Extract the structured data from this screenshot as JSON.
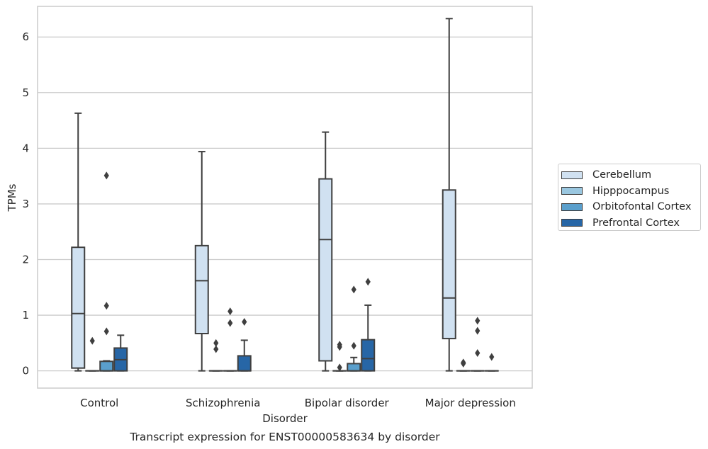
{
  "chart_data": {
    "type": "boxplot",
    "title": "",
    "caption": "Transcript expression for ENST00000583634 by disorder",
    "xlabel": "Disorder",
    "ylabel": "TPMs",
    "ylim": [
      -0.31,
      6.55
    ],
    "yticks": [
      0,
      1,
      2,
      3,
      4,
      5,
      6
    ],
    "grid": "horizontal",
    "legend_position": "right",
    "categories": [
      "Control",
      "Schizophrenia",
      "Bipolar disorder",
      "Major depression"
    ],
    "series": [
      {
        "name": "Cerebellum",
        "color": "#d0e1f1",
        "boxes": [
          {
            "q1": 0.05,
            "median": 1.03,
            "q3": 2.22,
            "whisker_low": 0.0,
            "whisker_high": 4.63,
            "outliers": []
          },
          {
            "q1": 0.67,
            "median": 1.62,
            "q3": 2.25,
            "whisker_low": 0.0,
            "whisker_high": 3.94,
            "outliers": []
          },
          {
            "q1": 0.18,
            "median": 2.36,
            "q3": 3.45,
            "whisker_low": 0.0,
            "whisker_high": 4.29,
            "outliers": []
          },
          {
            "q1": 0.58,
            "median": 1.31,
            "q3": 3.25,
            "whisker_low": 0.0,
            "whisker_high": 6.33,
            "outliers": []
          }
        ]
      },
      {
        "name": "Hipppocampus",
        "color": "#9ac7e0",
        "boxes": [
          {
            "q1": 0.0,
            "median": 0.0,
            "q3": 0.0,
            "whisker_low": 0.0,
            "whisker_high": 0.0,
            "outliers": [
              0.54
            ]
          },
          {
            "q1": 0.0,
            "median": 0.0,
            "q3": 0.0,
            "whisker_low": 0.0,
            "whisker_high": 0.0,
            "outliers": [
              0.5,
              0.39
            ]
          },
          {
            "q1": 0.0,
            "median": 0.0,
            "q3": 0.0,
            "whisker_low": 0.0,
            "whisker_high": 0.0,
            "outliers": [
              0.47,
              0.43,
              0.06
            ]
          },
          {
            "q1": 0.0,
            "median": 0.0,
            "q3": 0.0,
            "whisker_low": 0.0,
            "whisker_high": 0.0,
            "outliers": [
              0.15,
              0.13
            ]
          }
        ]
      },
      {
        "name": "Orbitofontal Cortex",
        "color": "#5a9fcc",
        "boxes": [
          {
            "q1": 0.0,
            "median": 0.0,
            "q3": 0.17,
            "whisker_low": 0.0,
            "whisker_high": 0.18,
            "outliers": [
              3.51,
              1.17,
              0.71
            ]
          },
          {
            "q1": 0.0,
            "median": 0.0,
            "q3": 0.0,
            "whisker_low": 0.0,
            "whisker_high": 0.0,
            "outliers": [
              1.07,
              0.86
            ]
          },
          {
            "q1": 0.0,
            "median": 0.0,
            "q3": 0.13,
            "whisker_low": 0.0,
            "whisker_high": 0.24,
            "outliers": [
              1.46,
              0.45
            ]
          },
          {
            "q1": 0.0,
            "median": 0.0,
            "q3": 0.0,
            "whisker_low": 0.0,
            "whisker_high": 0.0,
            "outliers": [
              0.9,
              0.72,
              0.32
            ]
          }
        ]
      },
      {
        "name": "Prefrontal Cortex",
        "color": "#2766a6",
        "boxes": [
          {
            "q1": 0.0,
            "median": 0.2,
            "q3": 0.41,
            "whisker_low": 0.0,
            "whisker_high": 0.64,
            "outliers": []
          },
          {
            "q1": 0.0,
            "median": 0.0,
            "q3": 0.27,
            "whisker_low": 0.0,
            "whisker_high": 0.55,
            "outliers": [
              0.88
            ]
          },
          {
            "q1": 0.0,
            "median": 0.22,
            "q3": 0.56,
            "whisker_low": 0.0,
            "whisker_high": 1.18,
            "outliers": [
              1.6
            ]
          },
          {
            "q1": 0.0,
            "median": 0.0,
            "q3": 0.0,
            "whisker_low": 0.0,
            "whisker_high": 0.0,
            "outliers": [
              0.25
            ]
          }
        ]
      }
    ]
  }
}
